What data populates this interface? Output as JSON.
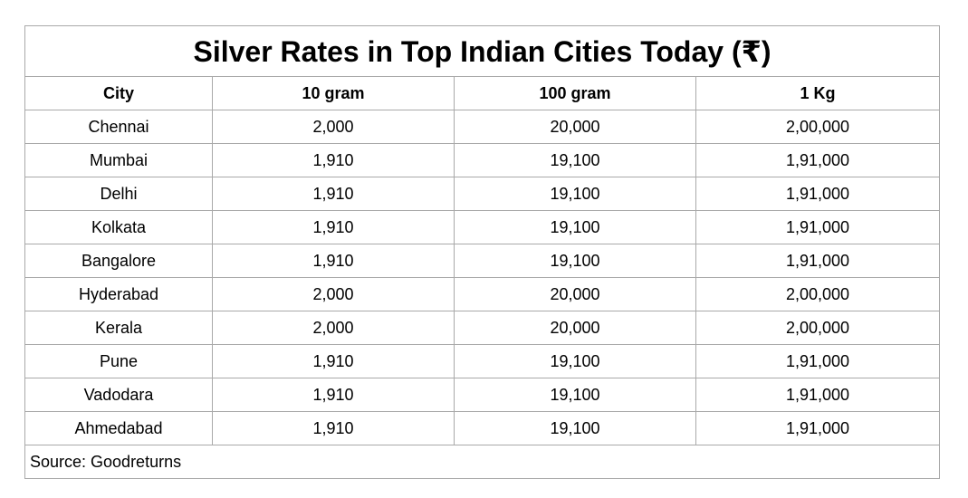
{
  "title": "Silver Rates in Top Indian Cities Today (₹)",
  "columns": [
    "City",
    "10 gram",
    "100 gram",
    "1 Kg"
  ],
  "rows": [
    [
      "Chennai",
      "2,000",
      "20,000",
      "2,00,000"
    ],
    [
      "Mumbai",
      "1,910",
      "19,100",
      "1,91,000"
    ],
    [
      "Delhi",
      "1,910",
      "19,100",
      "1,91,000"
    ],
    [
      "Kolkata",
      "1,910",
      "19,100",
      "1,91,000"
    ],
    [
      "Bangalore",
      "1,910",
      "19,100",
      "1,91,000"
    ],
    [
      "Hyderabad",
      "2,000",
      "20,000",
      "2,00,000"
    ],
    [
      "Kerala",
      "2,000",
      "20,000",
      "2,00,000"
    ],
    [
      "Pune",
      "1,910",
      "19,100",
      "1,91,000"
    ],
    [
      "Vadodara",
      "1,910",
      "19,100",
      "1,91,000"
    ],
    [
      "Ahmedabad",
      "1,910",
      "19,100",
      "1,91,000"
    ]
  ],
  "source": "Source: Goodreturns",
  "colors": {
    "border": "#a9a9a9",
    "text": "#000000",
    "background": "#ffffff"
  }
}
